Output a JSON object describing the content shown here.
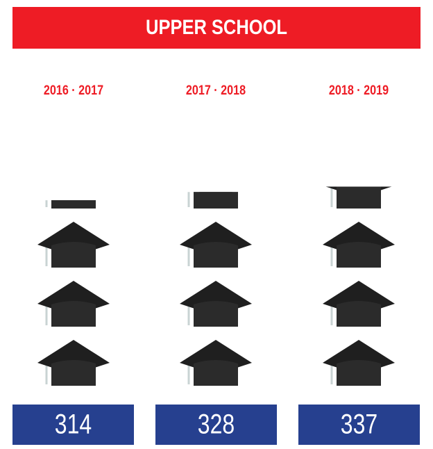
{
  "chart_data": {
    "type": "pictograph",
    "title": "UPPER SCHOOL",
    "categories": [
      "2016 · 2017",
      "2017 · 2018",
      "2018 · 2019"
    ],
    "values": [
      314,
      328,
      337
    ],
    "color": "#2b2b2b"
  }
}
